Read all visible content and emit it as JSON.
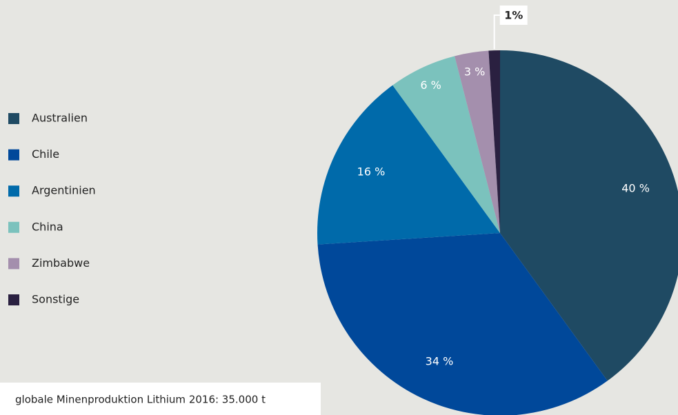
{
  "chart_data": {
    "type": "pie",
    "categories": [
      "Australien",
      "Chile",
      "Argentinien",
      "China",
      "Zimbabwe",
      "Sonstige"
    ],
    "values": [
      40,
      34,
      16,
      6,
      3,
      1
    ],
    "value_labels": [
      "40 %",
      "34 %",
      "16 %",
      "6 %",
      "3 %",
      "1%"
    ],
    "colors": [
      "#1f4a63",
      "#00489a",
      "#006aaa",
      "#7bc2bd",
      "#a48fad",
      "#2a2040"
    ],
    "legend": "left",
    "footnote": "globale Minenproduktion Lithium 2016: 35.000 t"
  }
}
